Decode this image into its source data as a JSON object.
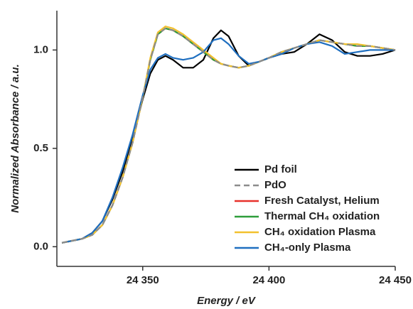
{
  "chart_data": {
    "type": "line",
    "x_label": "Energy / eV",
    "y_label": "Normalized Absorbance / a.u.",
    "xlim": [
      24316,
      24450
    ],
    "ylim": [
      -0.1,
      1.2
    ],
    "xticks": [
      {
        "value": 24350,
        "label": "24 350"
      },
      {
        "value": 24400,
        "label": "24 400"
      },
      {
        "value": 24450,
        "label": "24 450"
      }
    ],
    "yticks": [
      {
        "value": 0,
        "label": "0.0"
      },
      {
        "value": 0.5,
        "label": "0.5"
      },
      {
        "value": 1,
        "label": "1.0"
      }
    ],
    "legend": "lower right",
    "x": [
      24318,
      24322,
      24326,
      24330,
      24334,
      24338,
      24342,
      24346,
      24350,
      24353,
      24356,
      24359,
      24362,
      24366,
      24370,
      24374,
      24378,
      24381,
      24384,
      24388,
      24392,
      24396,
      24400,
      24405,
      24410,
      24415,
      24420,
      24425,
      24430,
      24435,
      24440,
      24445,
      24450
    ],
    "series": [
      {
        "name": "Pd foil",
        "color": "#000000",
        "dash": false,
        "values": [
          0.02,
          0.03,
          0.04,
          0.07,
          0.13,
          0.24,
          0.38,
          0.55,
          0.75,
          0.88,
          0.95,
          0.97,
          0.95,
          0.91,
          0.91,
          0.95,
          1.06,
          1.1,
          1.07,
          0.97,
          0.92,
          0.94,
          0.96,
          0.98,
          0.99,
          1.03,
          1.08,
          1.05,
          0.99,
          0.97,
          0.97,
          0.98,
          1.0
        ]
      },
      {
        "name": "PdO",
        "color": "#8c8c8c",
        "dash": true,
        "values": [
          0.02,
          0.03,
          0.04,
          0.06,
          0.11,
          0.21,
          0.35,
          0.53,
          0.76,
          0.95,
          1.08,
          1.11,
          1.1,
          1.07,
          1.03,
          0.99,
          0.95,
          0.93,
          0.92,
          0.91,
          0.92,
          0.94,
          0.96,
          0.99,
          1.01,
          1.03,
          1.05,
          1.04,
          1.03,
          1.02,
          1.02,
          1.01,
          1.0
        ]
      },
      {
        "name": "Fresh Catalyst, Helium",
        "color": "#e8312a",
        "dash": false,
        "values": [
          0.02,
          0.03,
          0.04,
          0.06,
          0.11,
          0.21,
          0.35,
          0.53,
          0.76,
          0.95,
          1.08,
          1.11,
          1.1,
          1.07,
          1.03,
          0.99,
          0.95,
          0.93,
          0.92,
          0.91,
          0.92,
          0.94,
          0.96,
          0.99,
          1.01,
          1.03,
          1.05,
          1.04,
          1.03,
          1.02,
          1.02,
          1.01,
          1.0
        ]
      },
      {
        "name": "Thermal CH₄ oxidation",
        "color": "#2e9e3a",
        "dash": false,
        "values": [
          0.02,
          0.03,
          0.04,
          0.06,
          0.11,
          0.21,
          0.35,
          0.53,
          0.76,
          0.95,
          1.08,
          1.11,
          1.1,
          1.07,
          1.03,
          0.99,
          0.95,
          0.93,
          0.92,
          0.91,
          0.92,
          0.94,
          0.96,
          0.99,
          1.01,
          1.03,
          1.05,
          1.04,
          1.03,
          1.02,
          1.02,
          1.01,
          1.0
        ]
      },
      {
        "name": "CH₄ oxidation Plasma",
        "color": "#f2c12e",
        "dash": false,
        "values": [
          0.02,
          0.03,
          0.04,
          0.06,
          0.11,
          0.21,
          0.35,
          0.53,
          0.76,
          0.96,
          1.09,
          1.12,
          1.11,
          1.08,
          1.04,
          1.0,
          0.96,
          0.93,
          0.92,
          0.91,
          0.92,
          0.94,
          0.96,
          0.99,
          1.01,
          1.03,
          1.05,
          1.04,
          1.03,
          1.03,
          1.02,
          1.01,
          1.0
        ]
      },
      {
        "name": "CH₄-only Plasma",
        "color": "#1f6fc0",
        "dash": false,
        "values": [
          0.02,
          0.03,
          0.04,
          0.07,
          0.13,
          0.25,
          0.4,
          0.57,
          0.77,
          0.9,
          0.96,
          0.98,
          0.96,
          0.95,
          0.96,
          0.99,
          1.05,
          1.06,
          1.03,
          0.97,
          0.93,
          0.94,
          0.96,
          0.98,
          1.01,
          1.03,
          1.04,
          1.02,
          0.98,
          0.99,
          1.0,
          1.0,
          1.0
        ]
      }
    ]
  }
}
